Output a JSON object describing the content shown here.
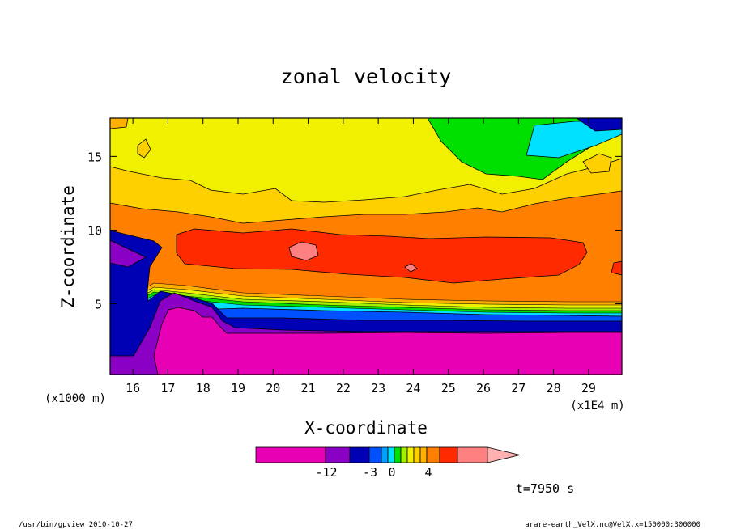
{
  "chart_data": {
    "type": "heatmap",
    "title": "zonal velocity",
    "xlabel": "X-coordinate",
    "ylabel": "Z-coordinate",
    "x_unit_label": "(x1E4 m)",
    "z_unit_label": "(x1000 m)",
    "xlim": [
      15.35,
      29.95
    ],
    "ylim": [
      0.2,
      17.6
    ],
    "x_ticks": [
      "16",
      "17",
      "18",
      "19",
      "20",
      "21",
      "22",
      "23",
      "24",
      "25",
      "26",
      "27",
      "28",
      "29"
    ],
    "y_ticks": [
      "5",
      "10",
      "15"
    ],
    "colorbar": {
      "colors": [
        "#e800b4",
        "#8a00c4",
        "#0000b4",
        "#0050ff",
        "#00a0ff",
        "#00e0ff",
        "#00e000",
        "#a0f000",
        "#f0f000",
        "#ffd000",
        "#ffb000",
        "#ff8000",
        "#ff2a00",
        "#ff8080",
        "#ffb0b0"
      ],
      "tick_labels": [
        "-12",
        "-3",
        "0",
        "4"
      ]
    },
    "time_label": "t=7950 s"
  },
  "footer": {
    "left": "/usr/bin/gpview   2010-10-27",
    "right": "arare-earth_VelX.nc@VelX,x=150000:300000"
  }
}
